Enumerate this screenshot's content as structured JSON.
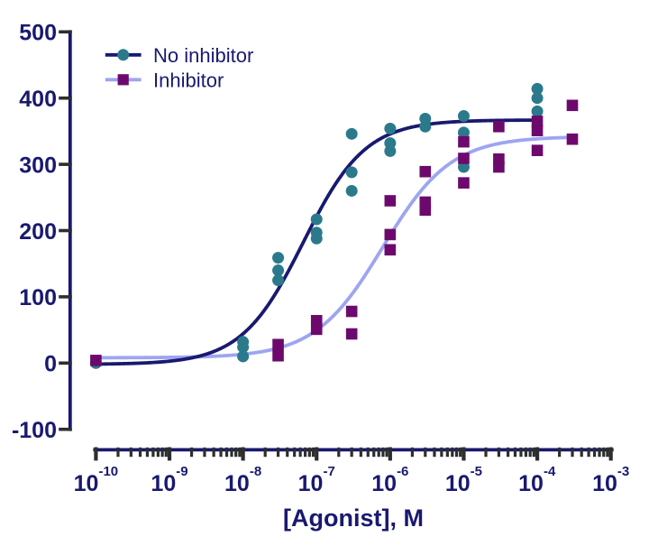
{
  "chart_data": {
    "type": "scatter",
    "title": "",
    "xlabel": "[Agonist], M",
    "ylabel": "",
    "x_scale": "log10",
    "xlim_log": [
      -10,
      -3
    ],
    "ylim": [
      -100,
      500
    ],
    "grid": false,
    "y_ticks": [
      -100,
      0,
      100,
      200,
      300,
      400,
      500
    ],
    "y_tick_labels": [
      "-100",
      "0",
      "100",
      "200",
      "300",
      "400",
      "500"
    ],
    "x_tick_base": "10",
    "x_tick_exponents": [
      -10,
      -9,
      -8,
      -7,
      -6,
      -5,
      -4,
      -3
    ],
    "x_tick_exponent_labels": [
      "-10",
      "-9",
      "-8",
      "-7",
      "-6",
      "-5",
      "-4",
      "-3"
    ],
    "x_minor_tick_multiples": [
      2,
      3,
      4,
      5,
      6,
      7,
      8,
      9
    ],
    "legend": {
      "position": "top-left"
    },
    "series": [
      {
        "name": "No inhibitor",
        "marker": "circle",
        "marker_color": "#2b7a8c",
        "line_color": "#191970",
        "x": [
          1e-10,
          1e-08,
          1e-08,
          1e-08,
          3e-08,
          3e-08,
          3e-08,
          1e-07,
          1e-07,
          1e-07,
          3e-07,
          3e-07,
          3e-07,
          1e-06,
          1e-06,
          1e-06,
          3e-06,
          3e-06,
          1e-05,
          1e-05,
          1e-05,
          0.0001,
          0.0001,
          0.0001
        ],
        "y": [
          0,
          10,
          24,
          32,
          125,
          140,
          159,
          188,
          197,
          217,
          260,
          288,
          346,
          320,
          332,
          354,
          357,
          369,
          296,
          348,
          373,
          380,
          400,
          414
        ],
        "fit": {
          "model": "log(agonist) vs. response",
          "bottom": -2,
          "top": 367,
          "logEC50": -7.18,
          "hillslope": 1.03,
          "x_range_log": [
            -10,
            -4
          ]
        }
      },
      {
        "name": "Inhibitor",
        "marker": "square",
        "marker_color": "#6d096d",
        "line_color": "#9da5f2",
        "x": [
          1e-10,
          3e-08,
          3e-08,
          1e-07,
          1e-07,
          3e-07,
          3e-07,
          1e-06,
          1e-06,
          1e-06,
          3e-06,
          3e-06,
          3e-06,
          1e-05,
          1e-05,
          1e-05,
          3e-05,
          3e-05,
          3e-05,
          0.0001,
          0.0001,
          0.0001,
          0.0003,
          0.0003
        ],
        "y": [
          4,
          11,
          28,
          51,
          64,
          44,
          78,
          171,
          194,
          245,
          231,
          243,
          289,
          272,
          309,
          334,
          296,
          308,
          357,
          321,
          351,
          365,
          338,
          389
        ],
        "fit": {
          "model": "log(agonist) vs. response",
          "bottom": 8,
          "top": 342,
          "logEC50": -6.1,
          "hillslope": 0.94,
          "x_range_log": [
            -10,
            -3.523
          ]
        }
      }
    ],
    "colors": {
      "axis_line": "#191970",
      "tick_mark": "#2e2e2e",
      "text": "#191970",
      "background": "#ffffff"
    }
  }
}
